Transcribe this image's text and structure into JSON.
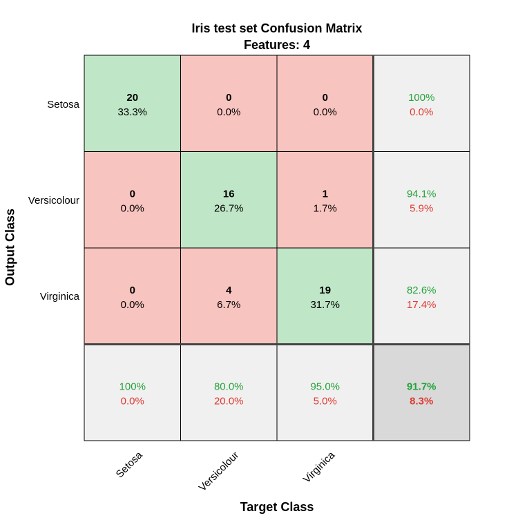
{
  "chart_data": {
    "type": "heatmap",
    "title": "Iris test set Confusion Matrix",
    "subtitle": "Features:  4",
    "xlabel": "Target Class",
    "ylabel": "Output Class",
    "classes": [
      "Setosa",
      "Versicolour",
      "Virginica"
    ],
    "counts": [
      [
        20,
        0,
        0
      ],
      [
        0,
        16,
        1
      ],
      [
        0,
        4,
        19
      ]
    ],
    "percents": [
      [
        "33.3%",
        "0.0%",
        "0.0%"
      ],
      [
        "0.0%",
        "26.7%",
        "1.7%"
      ],
      [
        "0.0%",
        "6.7%",
        "31.7%"
      ]
    ],
    "row_summary": [
      {
        "correct": "100%",
        "error": "0.0%"
      },
      {
        "correct": "94.1%",
        "error": "5.9%"
      },
      {
        "correct": "82.6%",
        "error": "17.4%"
      }
    ],
    "col_summary": [
      {
        "correct": "100%",
        "error": "0.0%"
      },
      {
        "correct": "80.0%",
        "error": "20.0%"
      },
      {
        "correct": "95.0%",
        "error": "5.0%"
      }
    ],
    "overall": {
      "correct": "91.7%",
      "error": "8.3%"
    },
    "colors": {
      "diagonal": "#bfe6c6",
      "off_diagonal": "#f8c4bf",
      "summary": "#f0f0f0",
      "overall": "#d9d9d9",
      "correct_text": "#24a33a",
      "error_text": "#e03a31"
    }
  }
}
